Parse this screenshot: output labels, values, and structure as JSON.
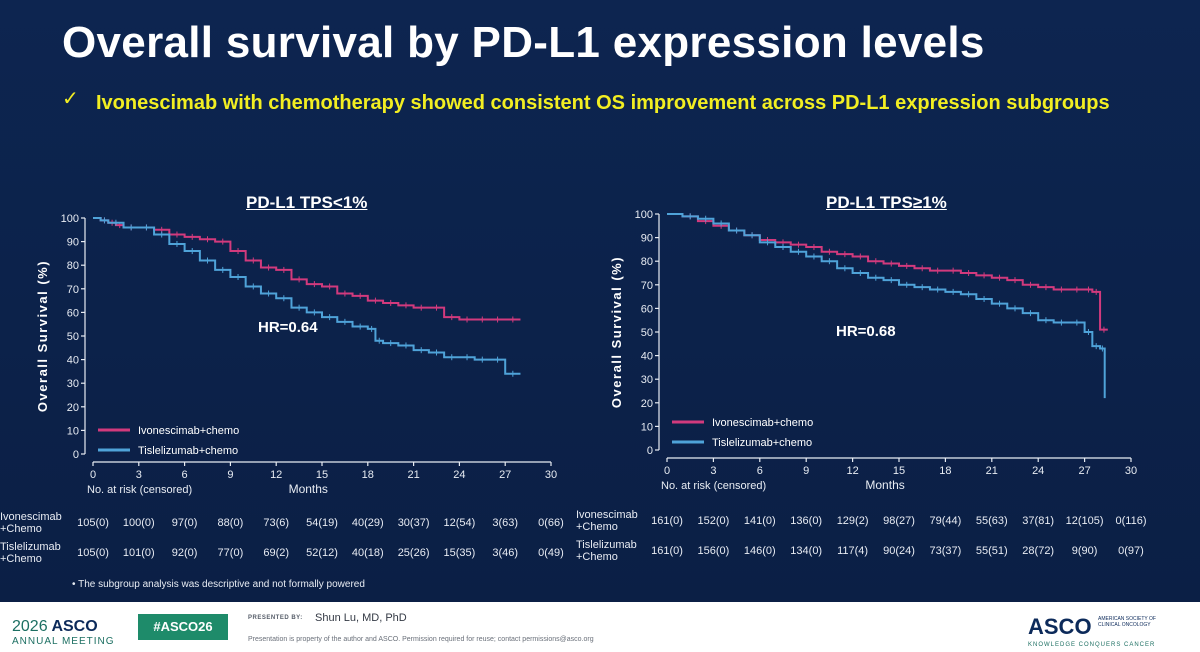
{
  "title": "Overall survival by PD-L1 expression levels",
  "subtitle_check": "✓",
  "subtitle": "Ivonescimab with chemotherapy showed consistent OS improvement across PD-L1 expression subgroups",
  "footnote": "•   The subgroup analysis was descriptive and not formally powered",
  "footer": {
    "year": "2026",
    "brand": "ASCO",
    "meeting": "ANNUAL MEETING",
    "hashtag": "#ASCO26",
    "presented_by": "PRESENTED BY:",
    "presenter": "Shun Lu, MD, PhD",
    "rights": "Presentation is property of the author and ASCO. Permission required for reuse; contact permissions@asco.org",
    "logo": "ASCO",
    "society": "AMERICAN SOCIETY OF CLINICAL ONCOLOGY",
    "tagline": "KNOWLEDGE CONQUERS CANCER"
  },
  "colors": {
    "ivonescimab": "#d23a7d",
    "tislelizumab": "#4fa3d9",
    "background": "#0c2148",
    "subtitle": "#f2ee22"
  },
  "chart_data": [
    {
      "type": "line",
      "title": "PD-L1 TPS<1%",
      "xlabel": "Months",
      "ylabel": "Overall Survival (%)",
      "xlim": [
        0,
        30
      ],
      "ylim": [
        0,
        100
      ],
      "xticks": [
        0,
        3,
        6,
        9,
        12,
        15,
        18,
        21,
        24,
        27,
        30
      ],
      "yticks": [
        0,
        10,
        20,
        30,
        40,
        50,
        60,
        70,
        80,
        90,
        100
      ],
      "annotation": "HR=0.64",
      "legend_position": "bottom-left",
      "series": [
        {
          "name": "Ivonescimab+chemo",
          "color": "#d23a7d",
          "x": [
            0,
            0.5,
            1,
            1.5,
            2,
            3,
            4,
            5,
            6,
            7,
            8,
            9,
            10,
            11,
            12,
            13,
            14,
            15,
            16,
            17,
            18,
            19,
            20,
            21,
            22,
            23,
            24,
            25,
            26,
            27,
            28
          ],
          "y": [
            100,
            99,
            98,
            97,
            96,
            96,
            95,
            93,
            92,
            91,
            90,
            86,
            82,
            79,
            78,
            74,
            72,
            71,
            68,
            67,
            65,
            64,
            63,
            62,
            62,
            58,
            57,
            57,
            57,
            57,
            57
          ]
        },
        {
          "name": "Tislelizumab+chemo",
          "color": "#4fa3d9",
          "x": [
            0,
            0.5,
            1,
            2,
            3,
            4,
            5,
            6,
            7,
            8,
            9,
            10,
            11,
            12,
            13,
            14,
            15,
            16,
            17,
            18,
            18.5,
            19,
            20,
            21,
            22,
            23,
            24,
            25,
            26,
            27,
            28
          ],
          "y": [
            100,
            99,
            98,
            96,
            96,
            93,
            89,
            86,
            82,
            78,
            75,
            71,
            68,
            66,
            62,
            60,
            58,
            56,
            54,
            53,
            48,
            47,
            46,
            44,
            43,
            41,
            41,
            40,
            40,
            34,
            34
          ]
        }
      ],
      "risk_table": {
        "header": "No. at risk (censored)",
        "rows": [
          {
            "label_line1": "Ivonescimab",
            "label_line2": "+Chemo",
            "values": [
              "105(0)",
              "100(0)",
              "97(0)",
              "88(0)",
              "73(6)",
              "54(19)",
              "40(29)",
              "30(37)",
              "12(54)",
              "3(63)",
              "0(66)"
            ]
          },
          {
            "label_line1": "Tislelizumab",
            "label_line2": "+Chemo",
            "values": [
              "105(0)",
              "101(0)",
              "92(0)",
              "77(0)",
              "69(2)",
              "52(12)",
              "40(18)",
              "25(26)",
              "15(35)",
              "3(46)",
              "0(49)"
            ]
          }
        ]
      }
    },
    {
      "type": "line",
      "title": "PD-L1 TPS≥1%",
      "xlabel": "Months",
      "ylabel": "Overall Survival (%)",
      "xlim": [
        0,
        30
      ],
      "ylim": [
        0,
        100
      ],
      "xticks": [
        0,
        3,
        6,
        9,
        12,
        15,
        18,
        21,
        24,
        27,
        30
      ],
      "yticks": [
        0,
        10,
        20,
        30,
        40,
        50,
        60,
        70,
        80,
        90,
        100
      ],
      "annotation": "HR=0.68",
      "legend_position": "bottom-left",
      "series": [
        {
          "name": "Ivonescimab+chemo",
          "color": "#d23a7d",
          "x": [
            0,
            1,
            2,
            3,
            4,
            5,
            6,
            7,
            8,
            9,
            10,
            11,
            12,
            13,
            14,
            15,
            16,
            17,
            18,
            19,
            20,
            21,
            22,
            23,
            24,
            25,
            26,
            27,
            27.5,
            28,
            28.5
          ],
          "y": [
            100,
            99,
            97,
            95,
            93,
            91,
            89,
            88,
            87,
            86,
            84,
            83,
            82,
            80,
            79,
            78,
            77,
            76,
            76,
            75,
            74,
            73,
            72,
            70,
            69,
            68,
            68,
            68,
            67,
            51,
            51
          ]
        },
        {
          "name": "Tislelizumab+chemo",
          "color": "#4fa3d9",
          "x": [
            0,
            1,
            2,
            3,
            4,
            5,
            6,
            7,
            8,
            9,
            10,
            11,
            12,
            13,
            14,
            15,
            16,
            17,
            18,
            19,
            20,
            21,
            22,
            23,
            24,
            25,
            26,
            27,
            27.5,
            28,
            28.3
          ],
          "y": [
            100,
            99,
            98,
            96,
            93,
            91,
            88,
            86,
            84,
            82,
            80,
            77,
            75,
            73,
            72,
            70,
            69,
            68,
            67,
            66,
            64,
            62,
            60,
            58,
            55,
            54,
            54,
            50,
            44,
            43,
            22
          ]
        }
      ],
      "risk_table": {
        "header": "No. at risk (censored)",
        "rows": [
          {
            "label_line1": "Ivonescimab",
            "label_line2": "+Chemo",
            "values": [
              "161(0)",
              "152(0)",
              "141(0)",
              "136(0)",
              "129(2)",
              "98(27)",
              "79(44)",
              "55(63)",
              "37(81)",
              "12(105)",
              "0(116)"
            ]
          },
          {
            "label_line1": "Tislelizumab",
            "label_line2": "+Chemo",
            "values": [
              "161(0)",
              "156(0)",
              "146(0)",
              "134(0)",
              "117(4)",
              "90(24)",
              "73(37)",
              "55(51)",
              "28(72)",
              "9(90)",
              "0(97)"
            ]
          }
        ]
      }
    }
  ]
}
